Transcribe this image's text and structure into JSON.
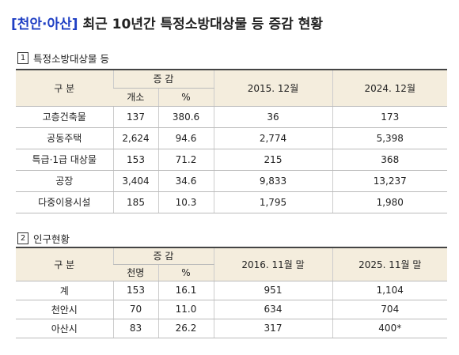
{
  "header": {
    "tag": "[천안·아산]",
    "title": "최근 10년간 특정소방대상물 등 증감 현황"
  },
  "sections": [
    {
      "number": "1",
      "heading": "특정소방대상물 등",
      "table": {
        "header": {
          "category": "구 분",
          "change": "증 감",
          "change_cols": [
            "개소",
            "%"
          ],
          "periods": [
            "2015. 12월",
            "2024. 12월"
          ]
        },
        "rows": [
          [
            "고층건축물",
            "137",
            "380.6",
            "36",
            "173"
          ],
          [
            "공동주택",
            "2,624",
            "94.6",
            "2,774",
            "5,398"
          ],
          [
            "특급·1급 대상물",
            "153",
            "71.2",
            "215",
            "368"
          ],
          [
            "공장",
            "3,404",
            "34.6",
            "9,833",
            "13,237"
          ],
          [
            "다중이용시설",
            "185",
            "10.3",
            "1,795",
            "1,980"
          ]
        ]
      }
    },
    {
      "number": "2",
      "heading": "인구현황",
      "table": {
        "header": {
          "category": "구 분",
          "change": "증 감",
          "change_cols": [
            "천명",
            "%"
          ],
          "periods": [
            "2016. 11월 말",
            "2025. 11월 말"
          ]
        },
        "rows": [
          [
            "계",
            "153",
            "16.1",
            "951",
            "1,104"
          ],
          [
            "천안시",
            "70",
            "11.0",
            "634",
            "704"
          ],
          [
            "아산시",
            "83",
            "26.2",
            "317",
            "400*"
          ]
        ]
      }
    }
  ]
}
